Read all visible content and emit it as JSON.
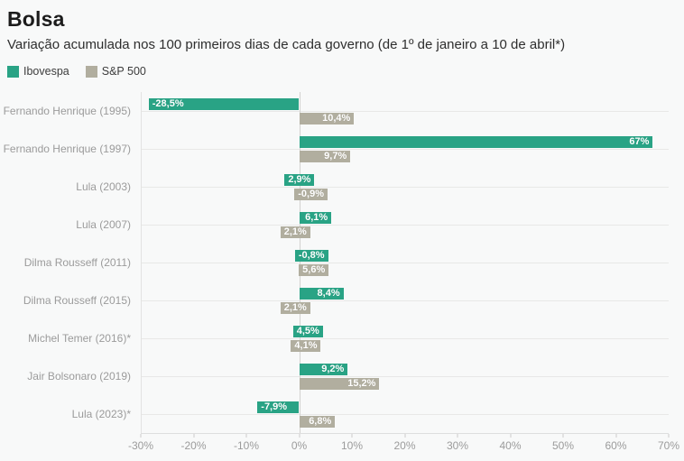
{
  "header": {
    "title": "Bolsa",
    "subtitle": "Variação acumulada nos 100 primeiros dias de cada governo (de 1º de janeiro a 10 de abril*)"
  },
  "legend": [
    {
      "label": "Ibovespa",
      "color": "#29a385"
    },
    {
      "label": "S&P 500",
      "color": "#b1ae9f"
    }
  ],
  "colors": {
    "background": "#f8f9f9",
    "ibovespa": "#29a385",
    "sp500": "#b1ae9f",
    "grid_line": "#e8e8e7",
    "zero_line": "#d2d2d0",
    "axis_text": "#9b9b9b"
  },
  "chart_data": {
    "type": "bar",
    "orientation": "horizontal",
    "title": "Bolsa",
    "subtitle": "Variação acumulada nos 100 primeiros dias de cada governo (de 1º de janeiro a 10 de abril*)",
    "categories": [
      "Fernando Henrique (1995)",
      "Fernando Henrique (1997)",
      "Lula (2003)",
      "Lula (2007)",
      "Dilma Rousseff (2011)",
      "Dilma Rousseff (2015)",
      "Michel Temer (2016)*",
      "Jair Bolsonaro (2019)",
      "Lula (2023)*"
    ],
    "series": [
      {
        "name": "Ibovespa",
        "color": "#29a385",
        "values": [
          -28.5,
          67,
          2.9,
          6.1,
          -0.8,
          8.4,
          4.5,
          9.2,
          -7.9
        ],
        "labels": [
          "-28,5%",
          "67%",
          "2,9%",
          "6,1%",
          "-0,8%",
          "8,4%",
          "4,5%",
          "9,2%",
          "-7,9%"
        ]
      },
      {
        "name": "S&P 500",
        "color": "#b1ae9f",
        "values": [
          10.4,
          9.7,
          -0.9,
          2.1,
          5.6,
          2.1,
          4.1,
          15.2,
          6.8
        ],
        "labels": [
          "10,4%",
          "9,7%",
          "-0,9%",
          "2,1%",
          "5,6%",
          "2,1%",
          "4,1%",
          "15,2%",
          "6,8%"
        ]
      }
    ],
    "xlim": [
      -30,
      70
    ],
    "x_ticks": [
      "-30%",
      "-20%",
      "-10%",
      "0%",
      "10%",
      "20%",
      "30%",
      "40%",
      "50%",
      "60%",
      "70%"
    ],
    "xlabel": "",
    "ylabel": "",
    "grid": "horizontal-row-lines, zero-line, left-edge-line",
    "legend_position": "top-left"
  }
}
